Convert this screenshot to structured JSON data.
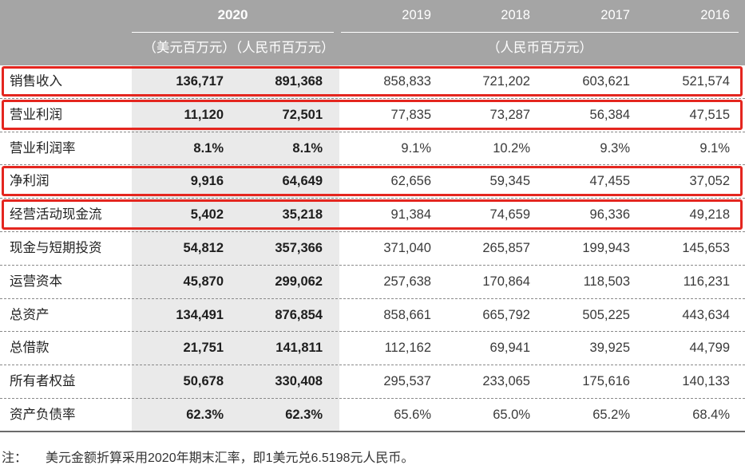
{
  "header": {
    "current_year": "2020",
    "current_units": [
      "（美元百万元）",
      "（人民币百万元）"
    ],
    "prior_years": [
      "2019",
      "2018",
      "2017",
      "2016"
    ],
    "prior_units": "（人民币百万元）"
  },
  "rows": [
    {
      "label": "销售收入",
      "values": [
        "136,717",
        "891,368",
        "858,833",
        "721,202",
        "603,621",
        "521,574"
      ],
      "highlighted": true
    },
    {
      "label": "营业利润",
      "values": [
        "11,120",
        "72,501",
        "77,835",
        "73,287",
        "56,384",
        "47,515"
      ],
      "highlighted": true
    },
    {
      "label": "营业利润率",
      "values": [
        "8.1%",
        "8.1%",
        "9.1%",
        "10.2%",
        "9.3%",
        "9.1%"
      ],
      "highlighted": false
    },
    {
      "label": "净利润",
      "values": [
        "9,916",
        "64,649",
        "62,656",
        "59,345",
        "47,455",
        "37,052"
      ],
      "highlighted": true
    },
    {
      "label": "经营活动现金流",
      "values": [
        "5,402",
        "35,218",
        "91,384",
        "74,659",
        "96,336",
        "49,218"
      ],
      "highlighted": true
    },
    {
      "label": "现金与短期投资",
      "values": [
        "54,812",
        "357,366",
        "371,040",
        "265,857",
        "199,943",
        "145,653"
      ],
      "highlighted": false
    },
    {
      "label": "运营资本",
      "values": [
        "45,870",
        "299,062",
        "257,638",
        "170,864",
        "118,503",
        "116,231"
      ],
      "highlighted": false
    },
    {
      "label": "总资产",
      "values": [
        "134,491",
        "876,854",
        "858,661",
        "665,792",
        "505,225",
        "443,634"
      ],
      "highlighted": false
    },
    {
      "label": "总借款",
      "values": [
        "21,751",
        "141,811",
        "112,162",
        "69,941",
        "39,925",
        "44,799"
      ],
      "highlighted": false
    },
    {
      "label": "所有者权益",
      "values": [
        "50,678",
        "330,408",
        "295,537",
        "233,065",
        "175,616",
        "140,133"
      ],
      "highlighted": false
    },
    {
      "label": "资产负债率",
      "values": [
        "62.3%",
        "62.3%",
        "65.6%",
        "65.0%",
        "65.2%",
        "68.4%"
      ],
      "highlighted": false
    }
  ],
  "note": {
    "label": "注：",
    "text": "美元金额折算采用2020年期末汇率，即1美元兑6.5198元人民币。"
  },
  "colors": {
    "header_bg": "#a5a5a5",
    "band_bg": "#eaeaea",
    "highlight": "#e4261f",
    "text": "#262626"
  }
}
